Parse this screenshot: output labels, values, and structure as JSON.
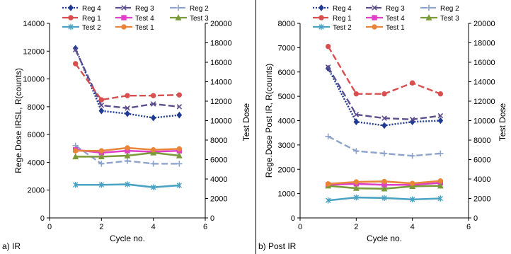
{
  "chart_data": [
    {
      "type": "line",
      "panel_label": "a) IR",
      "xlabel": "Cycle no.",
      "ylabel": "Rege.Dose IRSL, R(counts)",
      "y2label": "Test Dose",
      "xlim": [
        0,
        6
      ],
      "ylim": [
        0,
        14000
      ],
      "y2lim": [
        0,
        20000
      ],
      "x_ticks": [
        0,
        2,
        4,
        6
      ],
      "y_ticks": [
        0,
        2000,
        4000,
        6000,
        8000,
        10000,
        12000,
        14000
      ],
      "y2_ticks": [
        0,
        2000,
        4000,
        6000,
        8000,
        10000,
        12000,
        14000,
        16000,
        18000,
        20000
      ],
      "grid": false,
      "legend_placement": "top-center",
      "x": [
        1,
        2,
        3,
        4,
        5
      ],
      "series": [
        {
          "name": "Reg 4",
          "axis": "left",
          "color": "#1F3A93",
          "marker": "diamond",
          "dash": "2,2",
          "values": [
            12200,
            7700,
            7500,
            7200,
            7400
          ]
        },
        {
          "name": "Reg 3",
          "axis": "left",
          "color": "#5C4E8C",
          "marker": "x",
          "dash": "9,4",
          "values": [
            12100,
            8100,
            7900,
            8200,
            8000
          ]
        },
        {
          "name": "Reg 2",
          "axis": "left",
          "color": "#8EA3CC",
          "marker": "plus",
          "dash": "9,4",
          "values": [
            5200,
            3900,
            4100,
            3900,
            3900
          ]
        },
        {
          "name": "Reg 1",
          "axis": "left",
          "color": "#D94F4F",
          "marker": "circle",
          "dash": "9,4",
          "values": [
            11100,
            8500,
            8800,
            8800,
            8850
          ]
        },
        {
          "name": "Test 4",
          "axis": "right",
          "color": "#E040C8",
          "marker": "square",
          "dash": "",
          "values": [
            7000,
            6700,
            6900,
            6800,
            6900
          ]
        },
        {
          "name": "Test 3",
          "axis": "right",
          "color": "#7A9A3A",
          "marker": "triangle",
          "dash": "",
          "values": [
            6300,
            6300,
            6400,
            6700,
            6400
          ]
        },
        {
          "name": "Test 2",
          "axis": "right",
          "color": "#4BA3C3",
          "marker": "star",
          "dash": "",
          "values": [
            3400,
            3400,
            3450,
            3150,
            3350
          ]
        },
        {
          "name": "Test 1",
          "axis": "right",
          "color": "#E8853A",
          "marker": "circle",
          "dash": "",
          "values": [
            6900,
            6900,
            7200,
            7000,
            7100
          ]
        }
      ]
    },
    {
      "type": "line",
      "panel_label": "b) Post IR",
      "xlabel": "Cycle no.",
      "ylabel": "Rege.Dose Post IR, R(counts)",
      "y2label": "Test Dose",
      "xlim": [
        0,
        6
      ],
      "ylim": [
        0,
        8000
      ],
      "y2lim": [
        0,
        20000
      ],
      "x_ticks": [
        0,
        2,
        4,
        6
      ],
      "y_ticks": [
        0,
        1000,
        2000,
        3000,
        4000,
        5000,
        6000,
        7000,
        8000
      ],
      "y2_ticks": [
        0,
        2000,
        4000,
        6000,
        8000,
        10000,
        12000,
        14000,
        16000,
        18000,
        20000
      ],
      "grid": false,
      "legend_placement": "top-center",
      "x": [
        1,
        2,
        3,
        4,
        5
      ],
      "series": [
        {
          "name": "Reg 4",
          "axis": "left",
          "color": "#1F3A93",
          "marker": "diamond",
          "dash": "2,2",
          "values": [
            6150,
            3950,
            3800,
            3950,
            4000
          ]
        },
        {
          "name": "Reg 3",
          "axis": "left",
          "color": "#5C4E8C",
          "marker": "x",
          "dash": "9,4",
          "values": [
            6200,
            4250,
            4100,
            4050,
            4200
          ]
        },
        {
          "name": "Reg 2",
          "axis": "left",
          "color": "#8EA3CC",
          "marker": "plus",
          "dash": "9,4",
          "values": [
            3350,
            2750,
            2650,
            2550,
            2650
          ]
        },
        {
          "name": "Reg 1",
          "axis": "left",
          "color": "#D94F4F",
          "marker": "circle",
          "dash": "9,4",
          "values": [
            7050,
            5100,
            5100,
            5550,
            5100
          ]
        },
        {
          "name": "Test 4",
          "axis": "right",
          "color": "#E040C8",
          "marker": "square",
          "dash": "",
          "values": [
            3400,
            3500,
            3400,
            3400,
            3600
          ]
        },
        {
          "name": "Test 3",
          "axis": "right",
          "color": "#7A9A3A",
          "marker": "triangle",
          "dash": "",
          "values": [
            3300,
            3050,
            3000,
            3250,
            3300
          ]
        },
        {
          "name": "Test 2",
          "axis": "right",
          "color": "#4BA3C3",
          "marker": "star",
          "dash": "",
          "values": [
            1800,
            2100,
            2050,
            1900,
            2000
          ]
        },
        {
          "name": "Test 1",
          "axis": "right",
          "color": "#E8853A",
          "marker": "circle",
          "dash": "",
          "values": [
            3500,
            3700,
            3750,
            3550,
            3800
          ]
        }
      ]
    }
  ]
}
